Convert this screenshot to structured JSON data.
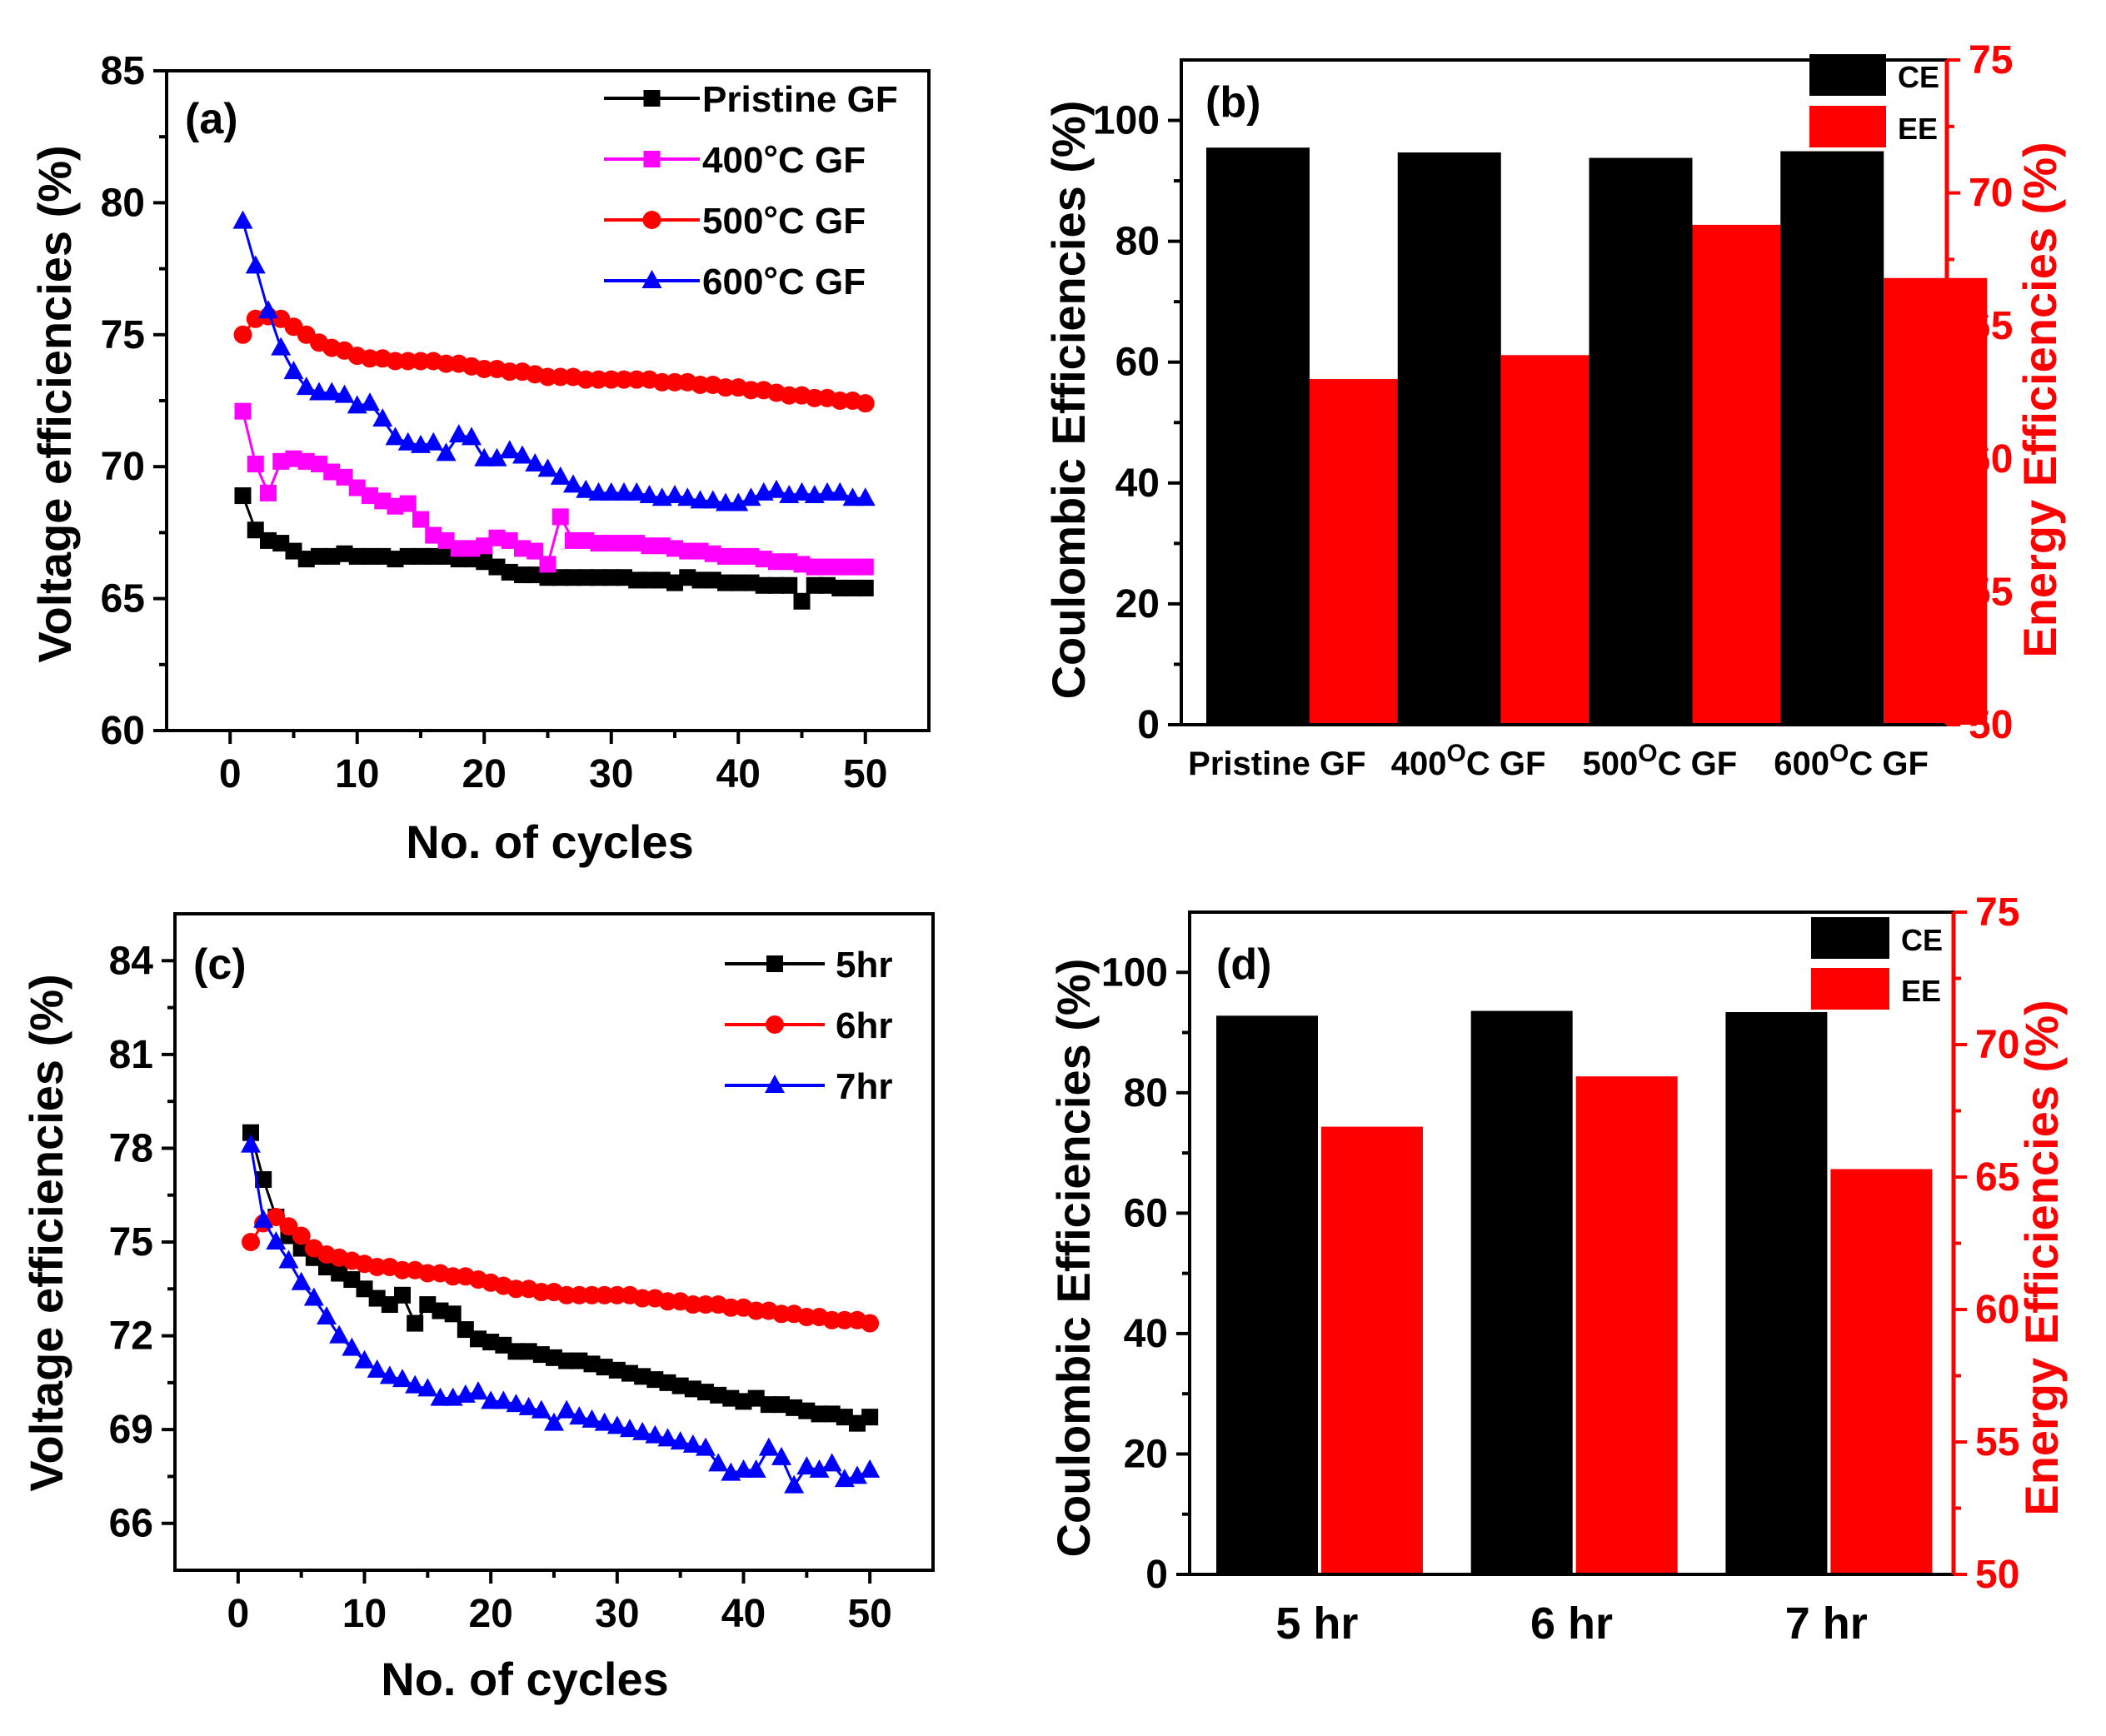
{
  "colors": {
    "black": "#000000",
    "magenta": "#ff00ff",
    "red": "#ff0000",
    "blue": "#0000ff"
  },
  "chart_data": [
    {
      "id": "a",
      "type": "line",
      "panel_label": "(a)",
      "xlabel": "No. of cycles",
      "ylabel": "Voltage efficiencies (%)",
      "xlim": [
        -5,
        55
      ],
      "ylim": [
        60,
        85
      ],
      "xticks": [
        0,
        10,
        20,
        30,
        40,
        50
      ],
      "yticks": [
        60,
        65,
        70,
        75,
        80,
        85
      ],
      "legend_position": "top-right",
      "series": [
        {
          "name": "Pristine GF",
          "color": "#000000",
          "marker": "square",
          "values": [
            68.9,
            67.6,
            67.2,
            67.1,
            66.8,
            66.5,
            66.6,
            66.6,
            66.7,
            66.6,
            66.6,
            66.6,
            66.5,
            66.6,
            66.6,
            66.6,
            66.6,
            66.5,
            66.5,
            66.4,
            66.2,
            66.0,
            65.9,
            65.9,
            65.8,
            65.8,
            65.8,
            65.8,
            65.8,
            65.8,
            65.8,
            65.7,
            65.7,
            65.7,
            65.6,
            65.8,
            65.7,
            65.7,
            65.6,
            65.6,
            65.6,
            65.5,
            65.5,
            65.5,
            64.9,
            65.5,
            65.5,
            65.4,
            65.4,
            65.4
          ]
        },
        {
          "name": "400°C GF",
          "color": "#ff00ff",
          "marker": "square",
          "values": [
            72.1,
            70.1,
            69.0,
            70.2,
            70.3,
            70.2,
            70.1,
            69.8,
            69.6,
            69.2,
            68.9,
            68.7,
            68.5,
            68.6,
            68.0,
            67.4,
            67.2,
            66.9,
            66.9,
            67.0,
            67.3,
            67.2,
            66.9,
            66.8,
            66.3,
            68.1,
            67.2,
            67.2,
            67.1,
            67.1,
            67.1,
            67.1,
            67.0,
            67.0,
            66.9,
            66.8,
            66.8,
            66.7,
            66.6,
            66.6,
            66.6,
            66.5,
            66.4,
            66.4,
            66.3,
            66.2,
            66.2,
            66.2,
            66.2,
            66.2
          ]
        },
        {
          "name": "500°C GF",
          "color": "#ff0000",
          "marker": "circle",
          "values": [
            75.0,
            75.6,
            75.7,
            75.6,
            75.3,
            75.0,
            74.7,
            74.5,
            74.4,
            74.2,
            74.1,
            74.1,
            74.0,
            74.0,
            74.0,
            74.0,
            73.9,
            73.9,
            73.8,
            73.7,
            73.7,
            73.6,
            73.6,
            73.5,
            73.4,
            73.4,
            73.4,
            73.3,
            73.3,
            73.3,
            73.3,
            73.3,
            73.3,
            73.2,
            73.2,
            73.2,
            73.1,
            73.1,
            73.0,
            73.0,
            72.9,
            72.9,
            72.8,
            72.7,
            72.7,
            72.6,
            72.6,
            72.5,
            72.5,
            72.4
          ]
        },
        {
          "name": "600°C GF",
          "color": "#0000ff",
          "marker": "triangle",
          "values": [
            79.3,
            77.6,
            75.9,
            74.5,
            73.6,
            73.0,
            72.8,
            72.8,
            72.7,
            72.3,
            72.4,
            71.8,
            71.1,
            70.9,
            70.8,
            70.9,
            70.5,
            71.2,
            71.1,
            70.3,
            70.3,
            70.6,
            70.4,
            70.1,
            69.9,
            69.6,
            69.3,
            69.1,
            69.0,
            69.0,
            69.0,
            69.0,
            68.9,
            68.8,
            68.9,
            68.8,
            68.7,
            68.7,
            68.6,
            68.6,
            68.8,
            69.0,
            69.1,
            68.9,
            69.0,
            68.9,
            69.0,
            69.0,
            68.8,
            68.8
          ]
        }
      ]
    },
    {
      "id": "b",
      "type": "bar",
      "panel_label": "(b)",
      "categories": [
        "Pristine GF",
        "400",
        "500",
        "600"
      ],
      "category_suffix": [
        "",
        "C GF",
        "C GF",
        "C GF"
      ],
      "category_degree": [
        "",
        "O",
        "O",
        "O"
      ],
      "ylabel": "Coulombic Efficiencies (%)",
      "ylabel2": "Energy Efficiencies (%)",
      "ylim": [
        0,
        110
      ],
      "ylim2": [
        50,
        75
      ],
      "yticks": [
        0,
        20,
        40,
        60,
        80,
        100
      ],
      "yticks2": [
        50,
        55,
        60,
        65,
        70,
        75
      ],
      "legend_position": "top-right",
      "series": [
        {
          "name": "CE",
          "color": "#000000",
          "axis": "left",
          "values": [
            95.5,
            94.7,
            93.8,
            94.9
          ]
        },
        {
          "name": "EE",
          "color": "#ff0000",
          "axis": "right",
          "values": [
            63.0,
            63.9,
            68.8,
            66.8
          ]
        }
      ]
    },
    {
      "id": "c",
      "type": "line",
      "panel_label": "(c)",
      "xlabel": "No. of cycles",
      "ylabel": "Voltage efficiencies (%)",
      "xlim": [
        -5,
        55
      ],
      "ylim": [
        64.5,
        85.5
      ],
      "xticks": [
        0,
        10,
        20,
        30,
        40,
        50
      ],
      "yticks": [
        66,
        69,
        72,
        75,
        78,
        81,
        84
      ],
      "legend_position": "top-right",
      "series": [
        {
          "name": "5hr",
          "color": "#000000",
          "marker": "square",
          "values": [
            78.5,
            77.0,
            75.8,
            75.2,
            74.8,
            74.5,
            74.2,
            74.0,
            73.8,
            73.5,
            73.2,
            73.0,
            73.3,
            72.4,
            73.0,
            72.8,
            72.7,
            72.2,
            71.9,
            71.8,
            71.7,
            71.5,
            71.5,
            71.4,
            71.3,
            71.2,
            71.2,
            71.1,
            71.0,
            70.9,
            70.8,
            70.7,
            70.6,
            70.5,
            70.4,
            70.3,
            70.2,
            70.1,
            70.0,
            69.9,
            70.0,
            69.8,
            69.8,
            69.7,
            69.6,
            69.5,
            69.5,
            69.4,
            69.2,
            69.4
          ]
        },
        {
          "name": "6hr",
          "color": "#ff0000",
          "marker": "circle",
          "values": [
            75.0,
            75.6,
            75.8,
            75.5,
            75.2,
            74.8,
            74.6,
            74.5,
            74.4,
            74.3,
            74.2,
            74.2,
            74.1,
            74.1,
            74.0,
            74.0,
            73.9,
            73.9,
            73.8,
            73.7,
            73.6,
            73.5,
            73.5,
            73.4,
            73.4,
            73.3,
            73.3,
            73.3,
            73.3,
            73.3,
            73.3,
            73.2,
            73.2,
            73.1,
            73.1,
            73.0,
            73.0,
            73.0,
            72.9,
            72.9,
            72.8,
            72.8,
            72.7,
            72.7,
            72.6,
            72.6,
            72.5,
            72.5,
            72.5,
            72.4
          ]
        },
        {
          "name": "7hr",
          "color": "#0000ff",
          "marker": "triangle",
          "values": [
            78.1,
            75.7,
            75.0,
            74.4,
            73.7,
            73.2,
            72.6,
            72.0,
            71.6,
            71.2,
            70.9,
            70.7,
            70.6,
            70.4,
            70.3,
            70.0,
            70.0,
            70.1,
            70.2,
            69.9,
            69.9,
            69.8,
            69.7,
            69.6,
            69.2,
            69.6,
            69.4,
            69.3,
            69.2,
            69.1,
            69.0,
            68.9,
            68.8,
            68.7,
            68.6,
            68.5,
            68.4,
            67.9,
            67.6,
            67.7,
            67.7,
            68.4,
            68.1,
            67.2,
            67.8,
            67.7,
            67.9,
            67.4,
            67.5,
            67.7
          ]
        }
      ]
    },
    {
      "id": "d",
      "type": "bar",
      "panel_label": "(d)",
      "categories": [
        "5 hr",
        "6 hr",
        "7 hr"
      ],
      "ylabel": "Coulombic Efficiencies (%)",
      "ylabel2": "Energy Efficiencies (%)",
      "ylim": [
        0,
        110
      ],
      "ylim2": [
        50,
        75
      ],
      "yticks": [
        0,
        20,
        40,
        60,
        80,
        100
      ],
      "yticks2": [
        50,
        55,
        60,
        65,
        70,
        75
      ],
      "legend_position": "top-right",
      "series": [
        {
          "name": "CE",
          "color": "#000000",
          "axis": "left",
          "values": [
            92.8,
            93.6,
            93.4
          ]
        },
        {
          "name": "EE",
          "color": "#ff0000",
          "axis": "right",
          "values": [
            66.9,
            68.8,
            65.3
          ]
        }
      ]
    }
  ]
}
